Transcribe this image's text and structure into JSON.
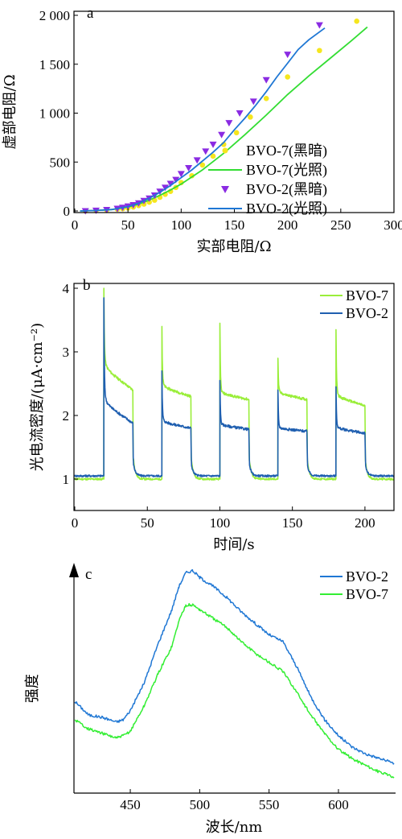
{
  "chart_data": [
    {
      "type": "scatter",
      "panel_label": "a",
      "xlabel": "实部电阻/Ω",
      "ylabel": "虚部电阻/Ω",
      "xlim": [
        0,
        300
      ],
      "ylim": [
        0,
        2000
      ],
      "xticks": [
        "0",
        "50",
        "100",
        "150",
        "200",
        "250",
        "300"
      ],
      "yticks": [
        "0",
        "500",
        "1 000",
        "1 500",
        "2 000"
      ],
      "legend_position": "right",
      "series": [
        {
          "name": "BVO-7(黑暗)",
          "kind": "points",
          "marker": "circle",
          "color": "#f5e61e",
          "x": [
            10,
            20,
            30,
            40,
            45,
            50,
            55,
            60,
            65,
            70,
            75,
            80,
            85,
            90,
            95,
            100,
            110,
            120,
            130,
            140,
            152,
            165,
            180,
            200,
            230,
            265
          ],
          "y": [
            0,
            5,
            10,
            18,
            22,
            30,
            40,
            55,
            70,
            90,
            110,
            140,
            170,
            200,
            240,
            290,
            360,
            470,
            560,
            680,
            800,
            960,
            1150,
            1370,
            1640,
            1940
          ]
        },
        {
          "name": "BVO-7(光照)",
          "kind": "line",
          "color": "#33dd33",
          "x": [
            5,
            20,
            35,
            50,
            60,
            70,
            80,
            90,
            100,
            120,
            140,
            160,
            180,
            200,
            220,
            240,
            260,
            275
          ],
          "y": [
            0,
            5,
            15,
            40,
            70,
            110,
            160,
            215,
            275,
            420,
            590,
            780,
            980,
            1190,
            1380,
            1560,
            1740,
            1880
          ]
        },
        {
          "name": "BVO-2(黑暗)",
          "kind": "points",
          "marker": "triangle-down",
          "color": "#8a2be2",
          "x": [
            10,
            20,
            30,
            40,
            45,
            50,
            55,
            60,
            65,
            70,
            75,
            80,
            85,
            90,
            95,
            100,
            107,
            115,
            123,
            130,
            138,
            145,
            155,
            168,
            180,
            200,
            230
          ],
          "y": [
            0,
            5,
            12,
            25,
            35,
            48,
            62,
            80,
            105,
            130,
            160,
            200,
            240,
            280,
            320,
            380,
            440,
            520,
            610,
            680,
            780,
            900,
            1000,
            1120,
            1340,
            1600,
            1900
          ]
        },
        {
          "name": "BVO-2(光照)",
          "kind": "line",
          "color": "#1f77d4",
          "x": [
            5,
            20,
            35,
            50,
            60,
            70,
            80,
            90,
            100,
            110,
            120,
            130,
            140,
            150,
            160,
            170,
            180,
            190,
            200,
            210,
            220,
            235
          ],
          "y": [
            0,
            5,
            15,
            45,
            80,
            130,
            190,
            260,
            340,
            420,
            510,
            600,
            700,
            830,
            950,
            1080,
            1220,
            1370,
            1510,
            1650,
            1750,
            1870
          ]
        }
      ]
    },
    {
      "type": "line",
      "panel_label": "b",
      "xlabel": "时间/s",
      "ylabel": "光电流密度/(μA·cm⁻²)",
      "xlim": [
        0,
        220
      ],
      "ylim": [
        0.6,
        4
      ],
      "xticks": [
        "0",
        "50",
        "100",
        "150",
        "200"
      ],
      "yticks": [
        "1",
        "2",
        "3",
        "4"
      ],
      "legend_position": "top-right",
      "light_on_intervals": [
        [
          20,
          40
        ],
        [
          60,
          80
        ],
        [
          100,
          120
        ],
        [
          140,
          160
        ],
        [
          180,
          200
        ]
      ],
      "series": [
        {
          "name": "BVO-7",
          "color": "#9aee3a",
          "dark_level": 1.0,
          "peaks": [
            4.0,
            3.4,
            3.45,
            2.9,
            3.35
          ],
          "plateau_start": [
            2.75,
            2.45,
            2.35,
            2.35,
            2.3
          ],
          "plateau_end": [
            2.4,
            2.3,
            2.25,
            2.25,
            2.15
          ]
        },
        {
          "name": "BVO-2",
          "color": "#1f5fb0",
          "dark_level": 1.05,
          "peaks": [
            3.85,
            2.7,
            2.55,
            2.4,
            2.45
          ],
          "plateau_start": [
            2.2,
            1.9,
            1.85,
            1.8,
            1.8
          ],
          "plateau_end": [
            1.88,
            1.8,
            1.78,
            1.75,
            1.72
          ]
        }
      ]
    },
    {
      "type": "line",
      "panel_label": "c",
      "xlabel": "波长/nm",
      "ylabel": "强度",
      "xlim": [
        410,
        640
      ],
      "xticks": [
        "450",
        "500",
        "550",
        "600"
      ],
      "legend_position": "top-right",
      "series": [
        {
          "name": "BVO-2",
          "color": "#1f77d4",
          "x": [
            410,
            420,
            430,
            440,
            445,
            450,
            460,
            470,
            480,
            485,
            490,
            495,
            500,
            510,
            520,
            530,
            540,
            550,
            560,
            570,
            580,
            590,
            600,
            610,
            620,
            630,
            640
          ],
          "y": [
            0.4,
            0.34,
            0.33,
            0.31,
            0.32,
            0.36,
            0.48,
            0.65,
            0.8,
            0.9,
            0.96,
            0.97,
            0.94,
            0.9,
            0.85,
            0.79,
            0.74,
            0.69,
            0.66,
            0.55,
            0.42,
            0.32,
            0.25,
            0.2,
            0.17,
            0.15,
            0.13
          ]
        },
        {
          "name": "BVO-7",
          "color": "#33ee33",
          "x": [
            410,
            420,
            430,
            440,
            445,
            450,
            460,
            470,
            480,
            485,
            490,
            495,
            500,
            510,
            520,
            530,
            540,
            550,
            560,
            570,
            580,
            590,
            600,
            610,
            620,
            630,
            640
          ],
          "y": [
            0.32,
            0.28,
            0.26,
            0.24,
            0.25,
            0.27,
            0.38,
            0.52,
            0.64,
            0.75,
            0.82,
            0.82,
            0.8,
            0.76,
            0.72,
            0.66,
            0.61,
            0.57,
            0.53,
            0.44,
            0.34,
            0.26,
            0.19,
            0.15,
            0.12,
            0.09,
            0.07
          ]
        }
      ]
    }
  ]
}
